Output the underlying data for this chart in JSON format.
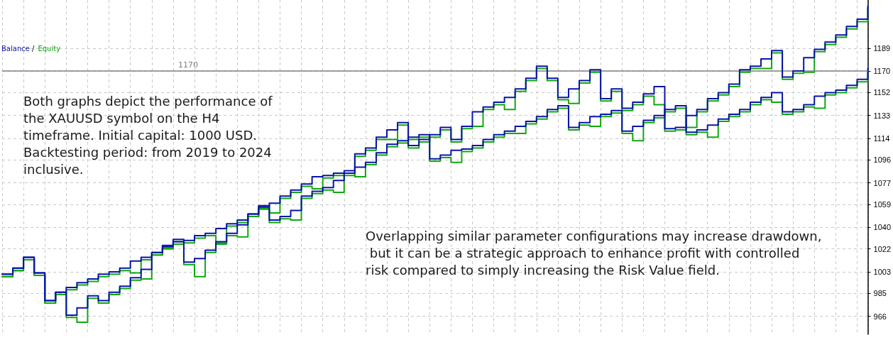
{
  "chart_data": {
    "type": "step",
    "categories": [
      null,
      null,
      null,
      null,
      null,
      null,
      null,
      null,
      null,
      null,
      null,
      null,
      null,
      null,
      null,
      null,
      null,
      null,
      null,
      null,
      null,
      null,
      null,
      null,
      null,
      null,
      null,
      null,
      null,
      null,
      null,
      null,
      null,
      null,
      null,
      null,
      null,
      null,
      null,
      null,
      null,
      null,
      null,
      null,
      null,
      null,
      null,
      null,
      null,
      null,
      null,
      null,
      null,
      null,
      null,
      null,
      null,
      null,
      null,
      null,
      null,
      null,
      null,
      null,
      null,
      null,
      null,
      null,
      null,
      null,
      null,
      null,
      null,
      null,
      null,
      null,
      null,
      null,
      null,
      null,
      null,
      null
    ],
    "series": [
      {
        "name": "Equity",
        "color": "#10a810",
        "values": [
          999,
          1004,
          1013,
          1000,
          977,
          984,
          988,
          992,
          995,
          999,
          1001,
          1004,
          1002,
          1013,
          1017,
          1022,
          1026,
          1027,
          1031,
          1033,
          1027,
          1041,
          1044,
          1049,
          1055,
          1052,
          1064,
          1069,
          1074,
          1072,
          1081,
          1083,
          1085,
          1082,
          1092,
          1100,
          1107,
          1110,
          1113,
          1115,
          1095,
          1098,
          1094,
          1103,
          1106,
          1111,
          1115,
          1118,
          1118,
          1126,
          1130,
          1136,
          1139,
          1121,
          1125,
          1124,
          1132,
          1135,
          1118,
          1112,
          1127,
          1131,
          1136,
          1139,
          1117,
          1119,
          1115,
          1128,
          1132,
          1136,
          1142,
          1146,
          1144,
          1134,
          1136,
          1140,
          1139,
          1150,
          1152,
          1156,
          1161,
          1170
        ]
      },
      {
        "color": "#10a810",
        "values": [
          999,
          1004,
          1013,
          1000,
          977,
          984,
          965,
          961,
          981,
          977,
          984,
          989,
          996,
          997,
          1017,
          1023,
          1028,
          1009,
          999,
          1019,
          1026,
          1033,
          1032,
          1049,
          1056,
          1044,
          1047,
          1046,
          1064,
          1068,
          1071,
          1069,
          1083,
          1099,
          1104,
          1113,
          1113,
          1125,
          1106,
          1111,
          1115,
          1121,
          1111,
          1122,
          1124,
          1138,
          1142,
          1138,
          1153,
          1162,
          1172,
          1162,
          1146,
          1143,
          1160,
          1169,
          1145,
          1153,
          1137,
          1142,
          1149,
          1142,
          1120,
          1121,
          1123,
          1136,
          1145,
          1150,
          1157,
          1169,
          1172,
          1172,
          1185,
          1163,
          1168,
          1169,
          1186,
          1192,
          1198,
          1205,
          1211,
          1222
        ]
      },
      {
        "name": "Balance",
        "color": "#0a14a8",
        "values": [
          1001,
          1006,
          1015,
          1002,
          979,
          986,
          990,
          994,
          997,
          1001,
          1003,
          1006,
          1012,
          1015,
          1019,
          1024,
          1028,
          1029,
          1033,
          1035,
          1039,
          1043,
          1046,
          1051,
          1057,
          1060,
          1066,
          1071,
          1076,
          1082,
          1083,
          1085,
          1087,
          1090,
          1094,
          1102,
          1109,
          1112,
          1115,
          1117,
          1097,
          1100,
          1104,
          1105,
          1108,
          1113,
          1117,
          1120,
          1124,
          1128,
          1132,
          1138,
          1141,
          1123,
          1127,
          1132,
          1134,
          1137,
          1120,
          1124,
          1129,
          1133,
          1138,
          1141,
          1119,
          1121,
          1125,
          1130,
          1134,
          1138,
          1144,
          1148,
          1152,
          1136,
          1138,
          1142,
          1149,
          1152,
          1154,
          1158,
          1163,
          1172
        ]
      },
      {
        "color": "#0a14a8",
        "values": [
          1001,
          1006,
          1015,
          1002,
          979,
          986,
          967,
          973,
          983,
          979,
          986,
          991,
          998,
          1005,
          1019,
          1025,
          1030,
          1011,
          1014,
          1021,
          1028,
          1035,
          1042,
          1051,
          1058,
          1046,
          1049,
          1054,
          1066,
          1070,
          1073,
          1079,
          1085,
          1101,
          1106,
          1115,
          1121,
          1127,
          1108,
          1113,
          1117,
          1123,
          1113,
          1124,
          1136,
          1140,
          1144,
          1148,
          1155,
          1164,
          1174,
          1164,
          1148,
          1155,
          1162,
          1171,
          1147,
          1155,
          1139,
          1144,
          1151,
          1157,
          1122,
          1123,
          1133,
          1138,
          1147,
          1152,
          1159,
          1171,
          1174,
          1180,
          1187,
          1165,
          1170,
          1181,
          1188,
          1194,
          1200,
          1207,
          1213,
          1224
        ]
      }
    ],
    "ylim": [
      951,
      1229
    ],
    "yticks": [
      966,
      985,
      1003,
      1022,
      1040,
      1059,
      1077,
      1096,
      1114,
      1133,
      1152,
      1170,
      1189
    ],
    "ref_lines": [
      {
        "axis": "y",
        "value": 1170,
        "label": "1170",
        "color": "#808080"
      }
    ],
    "annotations": [
      "/",
      "Both graphs depict the performance of the XAUUSD symbol on the H4 timeframe. Initial capital: 1000 USD. Backtesting period: from 2019 to 2024 inclusive.",
      "Overlapping similar parameter configurations may increase drawdown, but it can be a strategic approach to enhance profit with controlled risk compared to simply increasing the Risk Value field."
    ],
    "grid": true,
    "legend": "top left"
  }
}
